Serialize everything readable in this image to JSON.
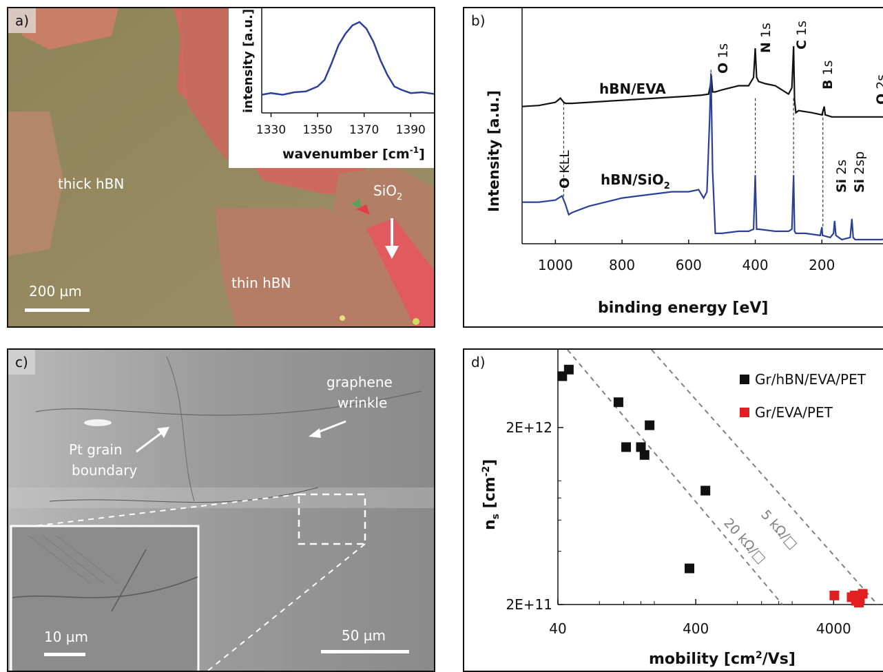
{
  "panel_a": {
    "label": "a)",
    "regions": {
      "thick": "thick hBN",
      "thin": "thin hBN",
      "sio2_main": "SiO",
      "sio2_sub": "2"
    },
    "scalebar": "200 µm",
    "inset": {
      "ylabel": "intensity [a.u.]",
      "xlabel_main": "wavenumber [cm",
      "xlabel_sup": "-1",
      "xlabel_close": "]",
      "xticks": [
        "1330",
        "1350",
        "1370",
        "1390"
      ]
    },
    "colors": {
      "sio2": "#c8645c",
      "hbn": "#9a8a5e",
      "line": "#2a3f9a"
    }
  },
  "panel_b": {
    "label": "b)",
    "ylabel": "Intensity [a.u.]",
    "xlabel": "binding energy [eV]",
    "xticks": [
      "1000",
      "800",
      "600",
      "400",
      "200"
    ],
    "trace_labels": {
      "top": "hBN/EVA",
      "bottom_main": "hBN/SiO",
      "bottom_sub": "2"
    },
    "peaks": {
      "o1s_el": "O",
      "o1s_orb": "1s",
      "n1s_el": "N",
      "n1s_orb": "1s",
      "c1s_el": "C",
      "c1s_orb": "1s",
      "b1s_el": "B",
      "b1s_orb": "1s",
      "o2s_el": "O",
      "o2s_orb": "2s",
      "okll_el": "O",
      "okll_orb": "KLL",
      "si2s_el": "Si",
      "si2s_orb": "2s",
      "si2sp_el": "Si",
      "si2sp_orb": "2sp"
    },
    "colors": {
      "eva": "#111111",
      "sio2": "#2a3f9a"
    }
  },
  "panel_c": {
    "label": "c)",
    "wrinkle": "graphene\nwrinkle",
    "wrinkle_l1": "graphene",
    "wrinkle_l2": "wrinkle",
    "grain_l1": "Pt grain",
    "grain_l2": "boundary",
    "scalebar_main": "50 µm",
    "scalebar_inset": "10 µm"
  },
  "panel_d": {
    "label": "d)",
    "ylabel_main": "n",
    "ylabel_sub": "s",
    "ylabel_rest": " [cm",
    "ylabel_sup": "-2",
    "ylabel_close": "]",
    "xlabel_main": "mobility [cm",
    "xlabel_sup": "2",
    "xlabel_rest": "/Vs]",
    "xticks": [
      "40",
      "400",
      "4000"
    ],
    "yticks": [
      "2E+12",
      "2E+11"
    ],
    "guide_5k": "5 kΩ/□",
    "guide_20k": "20 kΩ/□",
    "legend": [
      "Gr/hBN/EVA/PET",
      "Gr/EVA/PET"
    ],
    "colors": {
      "hbn": "#111111",
      "eva": "#e02020",
      "guide": "#808080"
    }
  },
  "chart_data": [
    {
      "type": "line",
      "title": "",
      "xlabel": "wavenumber [cm-1]",
      "ylabel": "intensity [a.u.]",
      "xlim": [
        1326,
        1400
      ],
      "x": [
        1326,
        1330,
        1335,
        1340,
        1345,
        1350,
        1353,
        1356,
        1359,
        1362,
        1365,
        1368,
        1371,
        1374,
        1377,
        1380,
        1383,
        1386,
        1390,
        1395,
        1400
      ],
      "y": [
        0.12,
        0.14,
        0.12,
        0.15,
        0.16,
        0.22,
        0.3,
        0.5,
        0.72,
        0.86,
        0.96,
        1.0,
        0.92,
        0.76,
        0.54,
        0.36,
        0.22,
        0.18,
        0.14,
        0.15,
        0.13
      ]
    },
    {
      "type": "line",
      "title": "",
      "xlabel": "binding energy [eV]",
      "ylabel": "Intensity [a.u.]",
      "xlim": [
        1100,
        0
      ],
      "series": [
        {
          "name": "hBN/EVA",
          "x": [
            1100,
            1050,
            1000,
            985,
            975,
            970,
            950,
            900,
            850,
            800,
            750,
            700,
            650,
            600,
            560,
            540,
            535,
            532,
            528,
            520,
            500,
            450,
            420,
            405,
            400,
            396,
            390,
            370,
            340,
            300,
            290,
            285,
            282,
            278,
            270,
            230,
            200,
            193,
            190,
            170,
            120,
            60,
            20,
            0
          ],
          "y": [
            0.66,
            0.665,
            0.68,
            0.7,
            0.68,
            0.675,
            0.675,
            0.68,
            0.685,
            0.69,
            0.695,
            0.7,
            0.705,
            0.71,
            0.715,
            0.72,
            0.76,
            0.81,
            0.73,
            0.73,
            0.74,
            0.76,
            0.76,
            0.8,
            0.94,
            0.8,
            0.78,
            0.77,
            0.76,
            0.72,
            0.75,
            0.95,
            0.69,
            0.63,
            0.64,
            0.63,
            0.62,
            0.66,
            0.62,
            0.61,
            0.61,
            0.61,
            0.61,
            0.61
          ]
        },
        {
          "name": "hBN/SiO2",
          "x": [
            1100,
            1050,
            1000,
            980,
            970,
            960,
            950,
            900,
            850,
            800,
            750,
            700,
            650,
            600,
            570,
            555,
            545,
            537,
            533,
            528,
            520,
            500,
            450,
            420,
            405,
            400,
            396,
            390,
            340,
            300,
            290,
            285,
            282,
            278,
            250,
            205,
            200,
            198,
            175,
            165,
            162,
            158,
            140,
            115,
            110,
            106,
            100,
            60,
            20,
            0
          ],
          "y": [
            0.2,
            0.2,
            0.21,
            0.23,
            0.19,
            0.14,
            0.15,
            0.18,
            0.2,
            0.22,
            0.23,
            0.24,
            0.25,
            0.25,
            0.26,
            0.22,
            0.25,
            0.6,
            0.82,
            0.35,
            0.05,
            0.05,
            0.06,
            0.06,
            0.07,
            0.33,
            0.07,
            0.07,
            0.06,
            0.06,
            0.07,
            0.33,
            0.06,
            0.05,
            0.05,
            0.04,
            0.08,
            0.04,
            0.03,
            0.05,
            0.11,
            0.04,
            0.02,
            0.03,
            0.12,
            0.03,
            0.02,
            0.02,
            0.02,
            0.03
          ]
        }
      ]
    },
    {
      "type": "scatter",
      "title": "",
      "xlabel": "mobility [cm2/Vs]",
      "ylabel": "ns [cm-2]",
      "x_scale": "log",
      "y_scale": "log",
      "xlim": [
        40,
        10000
      ],
      "ylim": [
        200000000000,
        5500000000000
      ],
      "legend_position": "top-right",
      "series": [
        {
          "name": "Gr/hBN/EVA/PET",
          "points": [
            [
              43,
              3900000000000.0
            ],
            [
              48,
              4250000000000.0
            ],
            [
              110,
              2780000000000.0
            ],
            [
              125,
              1550000000000.0
            ],
            [
              160,
              1550000000000.0
            ],
            [
              170,
              1400000000000.0
            ],
            [
              185,
              2060000000000.0
            ],
            [
              470,
              880000000000.0
            ],
            [
              360,
              320000000000.0
            ]
          ]
        },
        {
          "name": "Gr/EVA/PET",
          "points": [
            [
              4050,
              225000000000.0
            ],
            [
              5400,
              220000000000.0
            ],
            [
              5700,
              225000000000.0
            ],
            [
              5800,
              210000000000.0
            ],
            [
              6100,
              205000000000.0
            ],
            [
              6500,
              230000000000.0
            ],
            [
              6200,
              215000000000.0
            ]
          ]
        }
      ],
      "guides": [
        {
          "label": "5 kΩ/□",
          "style": "dashed"
        },
        {
          "label": "20 kΩ/□",
          "style": "dashed"
        }
      ]
    }
  ]
}
